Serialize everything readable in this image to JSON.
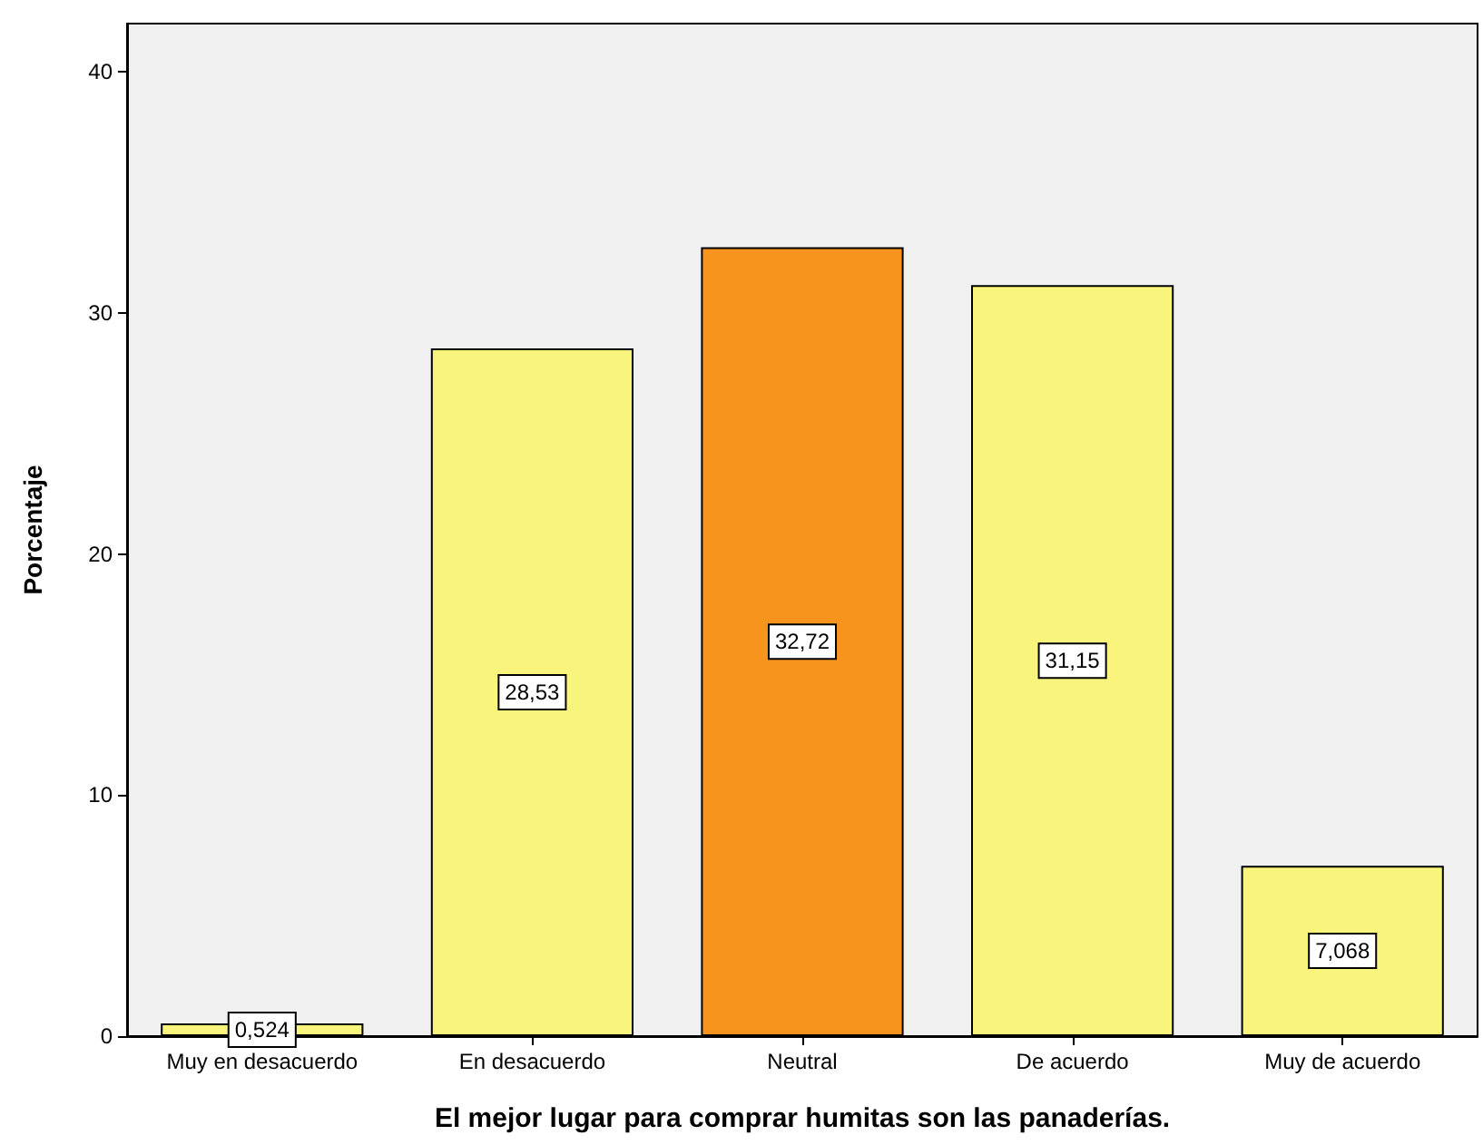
{
  "chart_data": {
    "type": "bar",
    "xlabel": "El mejor lugar para comprar humitas son las panaderías.",
    "ylabel": "Porcentaje",
    "categories": [
      "Muy en desacuerdo",
      "En desacuerdo",
      "Neutral",
      "De acuerdo",
      "Muy de acuerdo"
    ],
    "values": [
      0.524,
      28.53,
      32.72,
      31.15,
      7.068
    ],
    "value_labels": [
      "0,524",
      "28,53",
      "32,72",
      "31,15",
      "7,068"
    ],
    "colors": [
      "#f8f47c",
      "#f8f47c",
      "#f7941d",
      "#f8f47c",
      "#f8f47c"
    ],
    "ylim": [
      0,
      42
    ],
    "yticks": [
      0,
      10,
      20,
      30,
      40
    ],
    "grid": false
  }
}
